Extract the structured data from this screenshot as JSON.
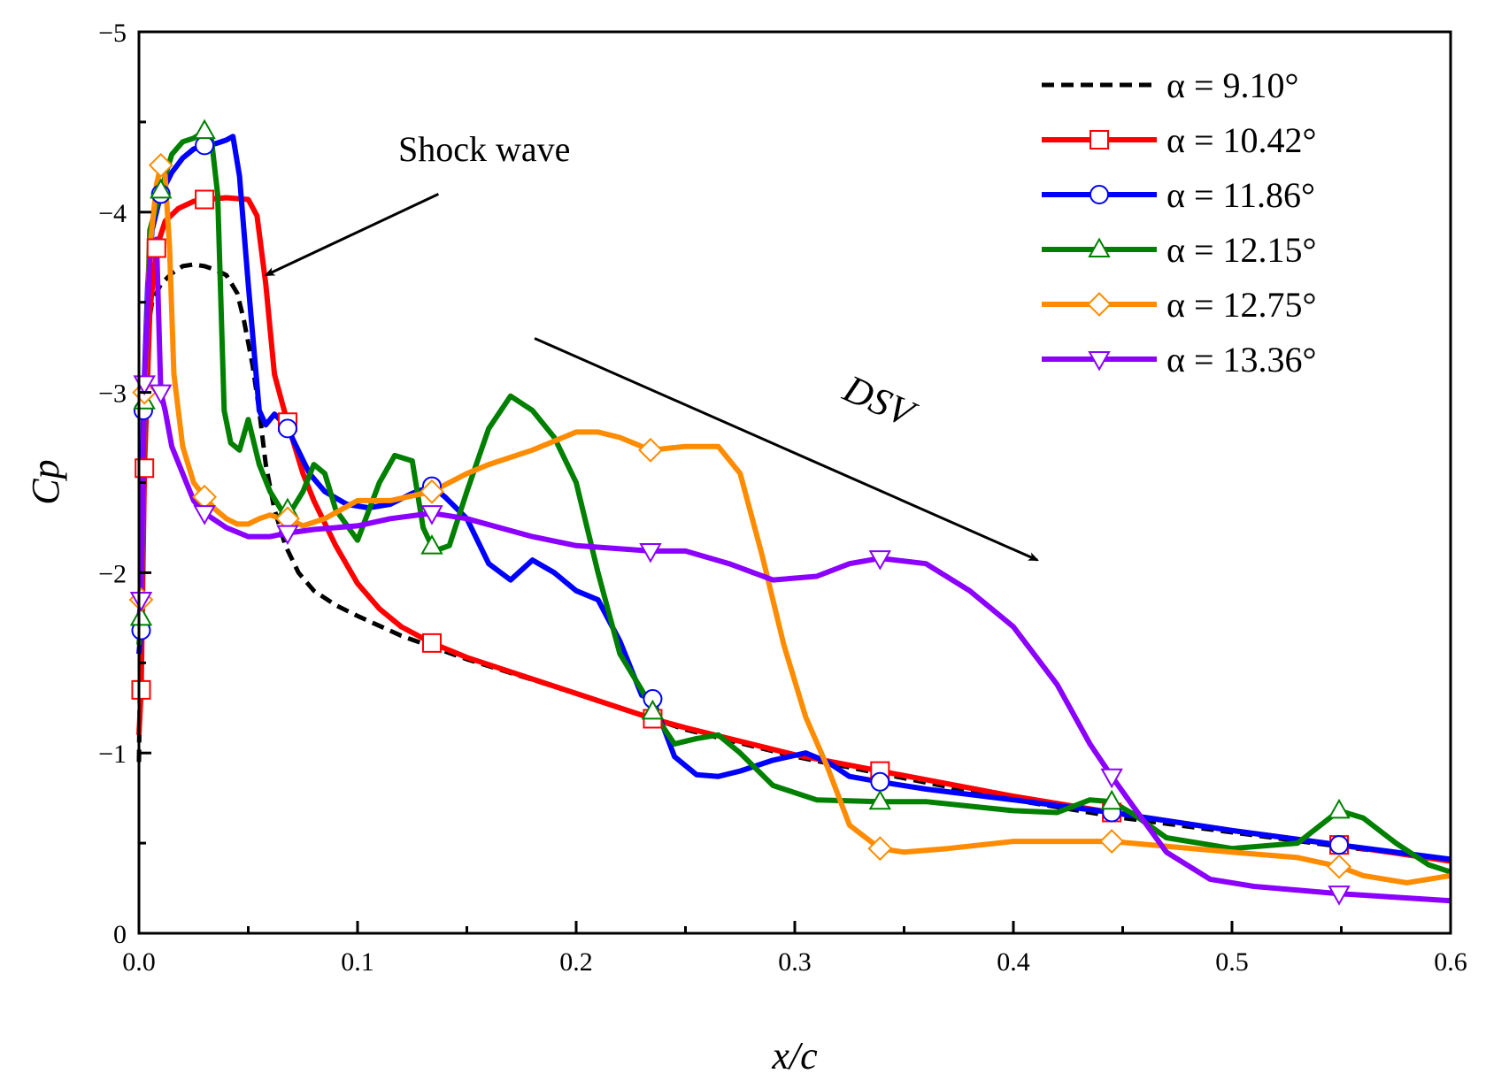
{
  "chart_data": {
    "type": "line",
    "title": "",
    "xlabel": "x/c",
    "ylabel": "Cp",
    "xlim": [
      0,
      0.6
    ],
    "ylim": [
      0,
      -5
    ],
    "y_inverted": true,
    "xticks": [
      0.0,
      0.1,
      0.2,
      0.3,
      0.4,
      0.5,
      0.6
    ],
    "xtick_labels": [
      "0.0",
      "0.1",
      "0.2",
      "0.3",
      "0.4",
      "0.5",
      "0.6"
    ],
    "yticks": [
      0,
      -1,
      -2,
      -3,
      -4,
      -5
    ],
    "ytick_labels": [
      "0",
      "−1",
      "−2",
      "−3",
      "−4",
      "−5"
    ],
    "grid": false,
    "legend_position": "top-right",
    "annotations": [
      {
        "text": "Shock wave",
        "italic": false,
        "arrow_from": [
          0.137,
          -4.1
        ],
        "arrow_to": [
          0.058,
          -3.65
        ]
      },
      {
        "text": "DSV",
        "italic": true,
        "arrow_from": [
          0.181,
          -3.3
        ],
        "arrow_to": [
          0.411,
          -2.07
        ]
      }
    ],
    "series": [
      {
        "name": "α = 9.10°",
        "color": "#000000",
        "style": "dashed",
        "marker": "none",
        "x": [
          0,
          0.002,
          0.004,
          0.006,
          0.01,
          0.015,
          0.02,
          0.025,
          0.03,
          0.035,
          0.04,
          0.045,
          0.048,
          0.052,
          0.055,
          0.058,
          0.062,
          0.067,
          0.073,
          0.08,
          0.09,
          0.1,
          0.12,
          0.15,
          0.2,
          0.25,
          0.3,
          0.35,
          0.4,
          0.45,
          0.5,
          0.55,
          0.6
        ],
        "y": [
          -0.95,
          -2.9,
          -3.35,
          -3.5,
          -3.6,
          -3.66,
          -3.7,
          -3.71,
          -3.7,
          -3.68,
          -3.65,
          -3.55,
          -3.4,
          -3.15,
          -2.9,
          -2.6,
          -2.35,
          -2.15,
          -2.0,
          -1.9,
          -1.82,
          -1.76,
          -1.65,
          -1.52,
          -1.33,
          -1.13,
          -0.98,
          -0.86,
          -0.74,
          -0.64,
          -0.56,
          -0.48,
          -0.41
        ]
      },
      {
        "name": "α = 10.42°",
        "color": "#ff0000",
        "style": "solid",
        "marker": "square",
        "x": [
          0,
          0.001,
          0.0025,
          0.005,
          0.008,
          0.012,
          0.018,
          0.025,
          0.03,
          0.04,
          0.05,
          0.054,
          0.058,
          0.062,
          0.066,
          0.07,
          0.075,
          0.08,
          0.09,
          0.1,
          0.11,
          0.12,
          0.134,
          0.15,
          0.2,
          0.235,
          0.25,
          0.3,
          0.339,
          0.4,
          0.445,
          0.5,
          0.549,
          0.6
        ],
        "y": [
          -1.1,
          -1.35,
          -2.58,
          -3.45,
          -3.8,
          -3.95,
          -4.02,
          -4.06,
          -4.07,
          -4.08,
          -4.07,
          -3.98,
          -3.6,
          -3.1,
          -2.92,
          -2.75,
          -2.55,
          -2.4,
          -2.15,
          -1.94,
          -1.8,
          -1.7,
          -1.61,
          -1.53,
          -1.33,
          -1.19,
          -1.14,
          -0.99,
          -0.9,
          -0.76,
          -0.67,
          -0.57,
          -0.49,
          -0.4
        ]
      },
      {
        "name": "α = 11.86°",
        "color": "#0000ff",
        "style": "solid",
        "marker": "circle",
        "x": [
          0,
          0.001,
          0.002,
          0.004,
          0.006,
          0.01,
          0.015,
          0.02,
          0.025,
          0.03,
          0.035,
          0.04,
          0.043,
          0.046,
          0.05,
          0.055,
          0.058,
          0.062,
          0.066,
          0.068,
          0.072,
          0.078,
          0.085,
          0.095,
          0.105,
          0.115,
          0.125,
          0.134,
          0.14,
          0.15,
          0.16,
          0.17,
          0.18,
          0.19,
          0.2,
          0.21,
          0.22,
          0.23,
          0.235,
          0.245,
          0.255,
          0.265,
          0.275,
          0.29,
          0.305,
          0.315,
          0.325,
          0.339,
          0.36,
          0.4,
          0.445,
          0.5,
          0.549,
          0.6
        ],
        "y": [
          -1.55,
          -1.68,
          -2.9,
          -3.6,
          -3.9,
          -4.1,
          -4.22,
          -4.3,
          -4.35,
          -4.37,
          -4.38,
          -4.4,
          -4.42,
          -4.2,
          -3.6,
          -2.9,
          -2.82,
          -2.88,
          -2.83,
          -2.8,
          -2.7,
          -2.55,
          -2.45,
          -2.38,
          -2.36,
          -2.38,
          -2.44,
          -2.48,
          -2.42,
          -2.3,
          -2.05,
          -1.96,
          -2.07,
          -2.0,
          -1.9,
          -1.85,
          -1.62,
          -1.32,
          -1.3,
          -0.98,
          -0.88,
          -0.87,
          -0.9,
          -0.96,
          -1.0,
          -0.95,
          -0.87,
          -0.84,
          -0.8,
          -0.74,
          -0.67,
          -0.57,
          -0.49,
          -0.41
        ]
      },
      {
        "name": "α = 12.15°",
        "color": "#008000",
        "style": "solid",
        "marker": "triangle-up",
        "x": [
          0,
          0.001,
          0.0025,
          0.005,
          0.01,
          0.015,
          0.02,
          0.025,
          0.03,
          0.033,
          0.036,
          0.039,
          0.042,
          0.046,
          0.05,
          0.055,
          0.06,
          0.065,
          0.07,
          0.075,
          0.08,
          0.085,
          0.09,
          0.1,
          0.11,
          0.117,
          0.125,
          0.13,
          0.135,
          0.142,
          0.15,
          0.16,
          0.17,
          0.18,
          0.19,
          0.2,
          0.21,
          0.22,
          0.23,
          0.235,
          0.245,
          0.255,
          0.265,
          0.275,
          0.29,
          0.31,
          0.339,
          0.36,
          0.4,
          0.42,
          0.435,
          0.445,
          0.455,
          0.47,
          0.5,
          0.53,
          0.549,
          0.56,
          0.575,
          0.59,
          0.6
        ],
        "y": [
          -1.6,
          -1.75,
          -2.95,
          -3.9,
          -4.12,
          -4.32,
          -4.39,
          -4.41,
          -4.45,
          -4.42,
          -4.1,
          -2.9,
          -2.72,
          -2.68,
          -2.85,
          -2.6,
          -2.45,
          -2.35,
          -2.35,
          -2.45,
          -2.6,
          -2.55,
          -2.35,
          -2.18,
          -2.5,
          -2.65,
          -2.62,
          -2.25,
          -2.12,
          -2.15,
          -2.45,
          -2.8,
          -2.98,
          -2.9,
          -2.75,
          -2.5,
          -2.0,
          -1.55,
          -1.35,
          -1.23,
          -1.05,
          -1.08,
          -1.1,
          -1.0,
          -0.82,
          -0.74,
          -0.73,
          -0.73,
          -0.68,
          -0.67,
          -0.74,
          -0.73,
          -0.66,
          -0.53,
          -0.47,
          -0.5,
          -0.68,
          -0.64,
          -0.5,
          -0.38,
          -0.34
        ]
      },
      {
        "name": "α = 12.75°",
        "color": "#ff8c00",
        "style": "solid",
        "marker": "diamond",
        "x": [
          0,
          0.001,
          0.0025,
          0.005,
          0.008,
          0.01,
          0.012,
          0.014,
          0.016,
          0.02,
          0.025,
          0.03,
          0.035,
          0.04,
          0.045,
          0.05,
          0.055,
          0.06,
          0.065,
          0.068,
          0.075,
          0.085,
          0.1,
          0.115,
          0.134,
          0.15,
          0.16,
          0.18,
          0.2,
          0.21,
          0.22,
          0.234,
          0.25,
          0.265,
          0.275,
          0.285,
          0.295,
          0.305,
          0.315,
          0.325,
          0.339,
          0.35,
          0.37,
          0.4,
          0.445,
          0.5,
          0.53,
          0.549,
          0.56,
          0.58,
          0.6
        ],
        "y": [
          -1.7,
          -1.85,
          -3.0,
          -3.8,
          -4.15,
          -4.26,
          -4.2,
          -3.8,
          -3.1,
          -2.7,
          -2.5,
          -2.42,
          -2.35,
          -2.3,
          -2.27,
          -2.27,
          -2.3,
          -2.32,
          -2.3,
          -2.3,
          -2.26,
          -2.3,
          -2.4,
          -2.4,
          -2.45,
          -2.55,
          -2.6,
          -2.68,
          -2.78,
          -2.78,
          -2.75,
          -2.68,
          -2.7,
          -2.7,
          -2.55,
          -2.1,
          -1.6,
          -1.2,
          -0.92,
          -0.6,
          -0.47,
          -0.45,
          -0.47,
          -0.51,
          -0.51,
          -0.45,
          -0.42,
          -0.37,
          -0.32,
          -0.28,
          -0.32
        ]
      },
      {
        "name": "α = 13.36°",
        "color": "#8b00ff",
        "style": "solid",
        "marker": "triangle-down",
        "x": [
          0,
          0.001,
          0.0025,
          0.005,
          0.008,
          0.01,
          0.012,
          0.015,
          0.02,
          0.025,
          0.03,
          0.04,
          0.05,
          0.06,
          0.068,
          0.08,
          0.1,
          0.115,
          0.134,
          0.15,
          0.18,
          0.2,
          0.234,
          0.25,
          0.27,
          0.29,
          0.31,
          0.325,
          0.339,
          0.36,
          0.38,
          0.4,
          0.42,
          0.435,
          0.445,
          0.455,
          0.47,
          0.49,
          0.51,
          0.549,
          0.6
        ],
        "y": [
          -1.75,
          -1.85,
          -3.05,
          -3.75,
          -3.85,
          -3.0,
          -2.9,
          -2.7,
          -2.55,
          -2.4,
          -2.33,
          -2.25,
          -2.2,
          -2.2,
          -2.22,
          -2.24,
          -2.26,
          -2.3,
          -2.33,
          -2.3,
          -2.2,
          -2.15,
          -2.12,
          -2.12,
          -2.05,
          -1.96,
          -1.98,
          -2.05,
          -2.08,
          -2.05,
          -1.9,
          -1.7,
          -1.38,
          -1.05,
          -0.87,
          -0.7,
          -0.45,
          -0.3,
          -0.26,
          -0.22,
          -0.18
        ]
      }
    ],
    "marker_points": [
      {
        "series": 1,
        "x": [
          0.001,
          0.0025,
          0.008,
          0.03,
          0.068,
          0.134,
          0.235,
          0.339,
          0.445,
          0.549
        ]
      },
      {
        "series": 2,
        "x": [
          0.001,
          0.002,
          0.01,
          0.03,
          0.068,
          0.134,
          0.235,
          0.339,
          0.445,
          0.549
        ]
      },
      {
        "series": 3,
        "x": [
          0.001,
          0.0025,
          0.01,
          0.03,
          0.068,
          0.134,
          0.235,
          0.339,
          0.445,
          0.549
        ]
      },
      {
        "series": 4,
        "x": [
          0.001,
          0.0025,
          0.01,
          0.03,
          0.068,
          0.134,
          0.234,
          0.339,
          0.445,
          0.549
        ]
      },
      {
        "series": 5,
        "x": [
          0.001,
          0.0025,
          0.01,
          0.03,
          0.068,
          0.134,
          0.234,
          0.339,
          0.445,
          0.549
        ]
      }
    ]
  }
}
